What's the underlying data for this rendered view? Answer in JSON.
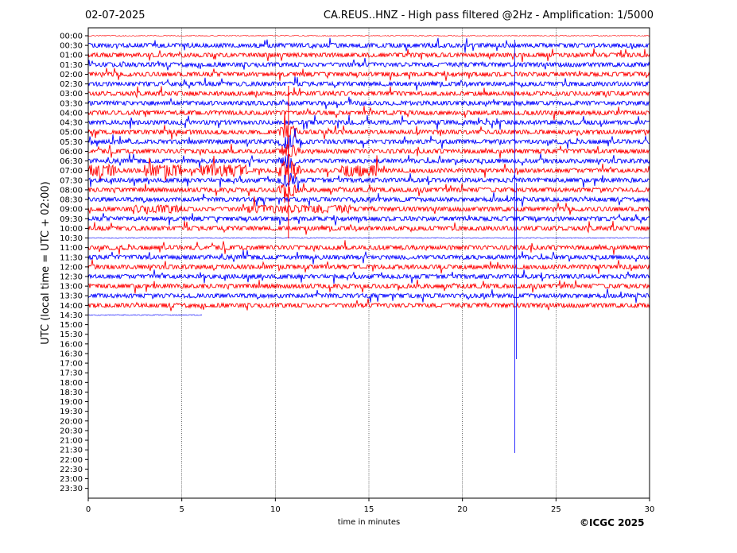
{
  "header": {
    "date": "02-07-2025",
    "title": "CA.REUS..HNZ - High pass filtered @2Hz - Amplification: 1/5000"
  },
  "copyright": "©ICGC 2025",
  "colors": {
    "even_row": "#ff0000",
    "odd_row": "#0000ff",
    "grid": "#000000"
  },
  "chart_data": {
    "type": "line",
    "title": "CA.REUS..HNZ - High pass filtered @2Hz - Amplification: 1/5000",
    "xlabel": "time in minutes",
    "ylabel": "UTC (local time = UTC + 02:00)",
    "xlim": [
      0,
      30
    ],
    "x_ticks": [
      0,
      5,
      10,
      15,
      20,
      25,
      30
    ],
    "vertical_gridlines_at": [
      5,
      10,
      15,
      20,
      25
    ],
    "rows": [
      "00:00",
      "00:30",
      "01:00",
      "01:30",
      "02:00",
      "02:30",
      "03:00",
      "03:30",
      "04:00",
      "04:30",
      "05:00",
      "05:30",
      "06:00",
      "06:30",
      "07:00",
      "07:30",
      "08:00",
      "08:30",
      "09:00",
      "09:30",
      "10:00",
      "10:30",
      "11:00",
      "11:30",
      "12:00",
      "12:30",
      "13:00",
      "13:30",
      "14:00",
      "14:30",
      "15:00",
      "15:30",
      "16:00",
      "16:30",
      "17:00",
      "17:30",
      "18:00",
      "18:30",
      "19:00",
      "19:30",
      "20:00",
      "20:30",
      "21:00",
      "21:30",
      "22:00",
      "22:30",
      "23:00",
      "23:30"
    ],
    "rows_with_data": 30,
    "last_row_end_minute": 6.1,
    "events": [
      {
        "minute": 10.7,
        "rows": "05:00-10:30",
        "description": "large amplitude signal"
      },
      {
        "minute": 22.8,
        "rows": "00:30-21:30",
        "description": "spike"
      }
    ]
  }
}
